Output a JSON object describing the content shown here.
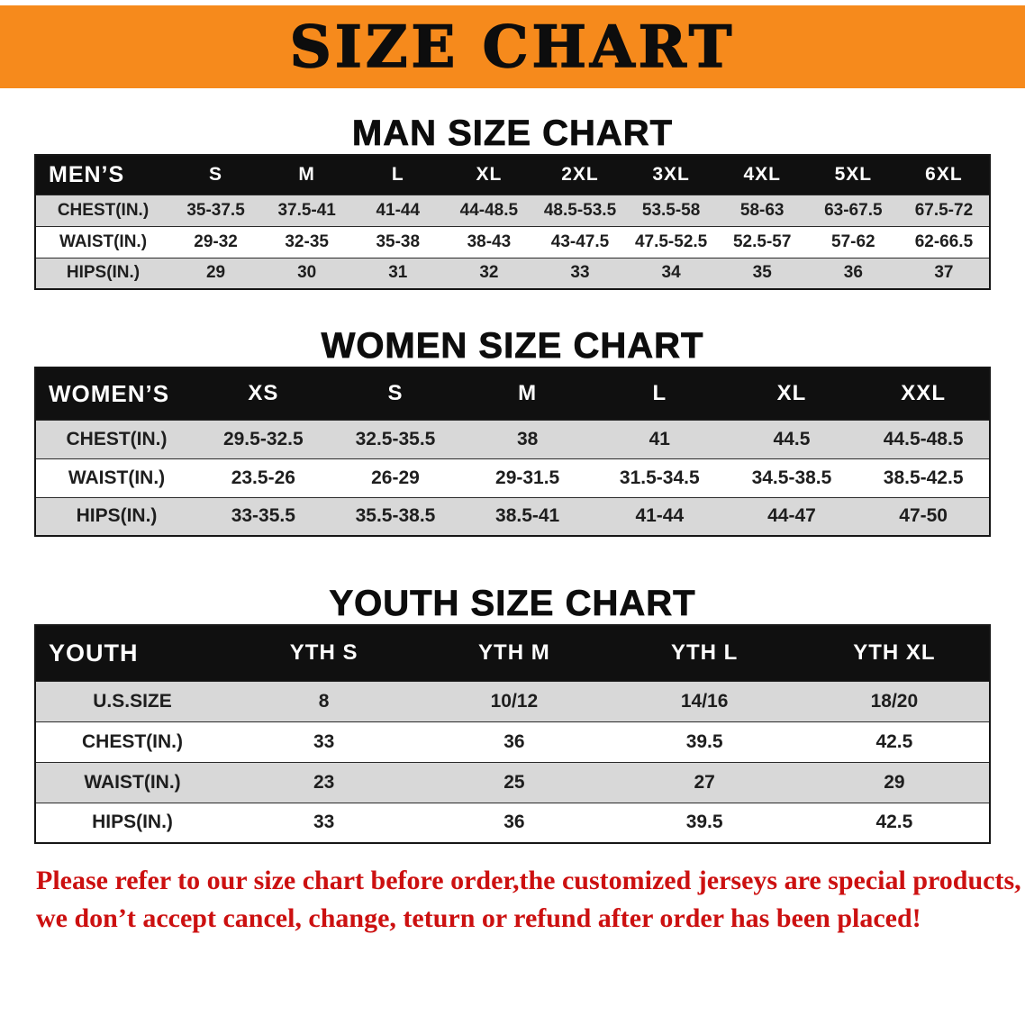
{
  "banner": {
    "title": "SIZE CHART"
  },
  "colors": {
    "banner_orange": "#f68a1c",
    "table_header_black": "#101010",
    "row_gray": "#d8d8d8",
    "disclaimer_red": "#cc1010"
  },
  "sections": [
    {
      "heading": "MAN SIZE CHART",
      "table": {
        "header": [
          "MEN’S",
          "S",
          "M",
          "L",
          "XL",
          "2XL",
          "3XL",
          "4XL",
          "5XL",
          "6XL"
        ],
        "rows": [
          [
            "CHEST(IN.)",
            "35-37.5",
            "37.5-41",
            "41-44",
            "44-48.5",
            "48.5-53.5",
            "53.5-58",
            "58-63",
            "63-67.5",
            "67.5-72"
          ],
          [
            "WAIST(IN.)",
            "29-32",
            "32-35",
            "35-38",
            "38-43",
            "43-47.5",
            "47.5-52.5",
            "52.5-57",
            "57-62",
            "62-66.5"
          ],
          [
            "HIPS(IN.)",
            "29",
            "30",
            "31",
            "32",
            "33",
            "34",
            "35",
            "36",
            "37"
          ]
        ]
      }
    },
    {
      "heading": "WOMEN SIZE CHART",
      "table": {
        "header": [
          "WOMEN’S",
          "XS",
          "S",
          "M",
          "L",
          "XL",
          "XXL"
        ],
        "rows": [
          [
            "CHEST(IN.)",
            "29.5-32.5",
            "32.5-35.5",
            "38",
            "41",
            "44.5",
            "44.5-48.5"
          ],
          [
            "WAIST(IN.)",
            "23.5-26",
            "26-29",
            "29-31.5",
            "31.5-34.5",
            "34.5-38.5",
            "38.5-42.5"
          ],
          [
            "HIPS(IN.)",
            "33-35.5",
            "35.5-38.5",
            "38.5-41",
            "41-44",
            "44-47",
            "47-50"
          ]
        ]
      }
    },
    {
      "heading": "YOUTH SIZE CHART",
      "table": {
        "header": [
          "YOUTH",
          "YTH S",
          "YTH M",
          "YTH L",
          "YTH XL"
        ],
        "rows": [
          [
            "U.S.SIZE",
            "8",
            "10/12",
            "14/16",
            "18/20"
          ],
          [
            "CHEST(IN.)",
            "33",
            "36",
            "39.5",
            "42.5"
          ],
          [
            "WAIST(IN.)",
            "23",
            "25",
            "27",
            "29"
          ],
          [
            "HIPS(IN.)",
            "33",
            "36",
            "39.5",
            "42.5"
          ]
        ]
      }
    }
  ],
  "footer": {
    "line1": "Please refer to our size chart before order,the customized jerseys are special products,",
    "line2": "we don’t accept cancel, change, teturn or refund after order has been placed!"
  }
}
